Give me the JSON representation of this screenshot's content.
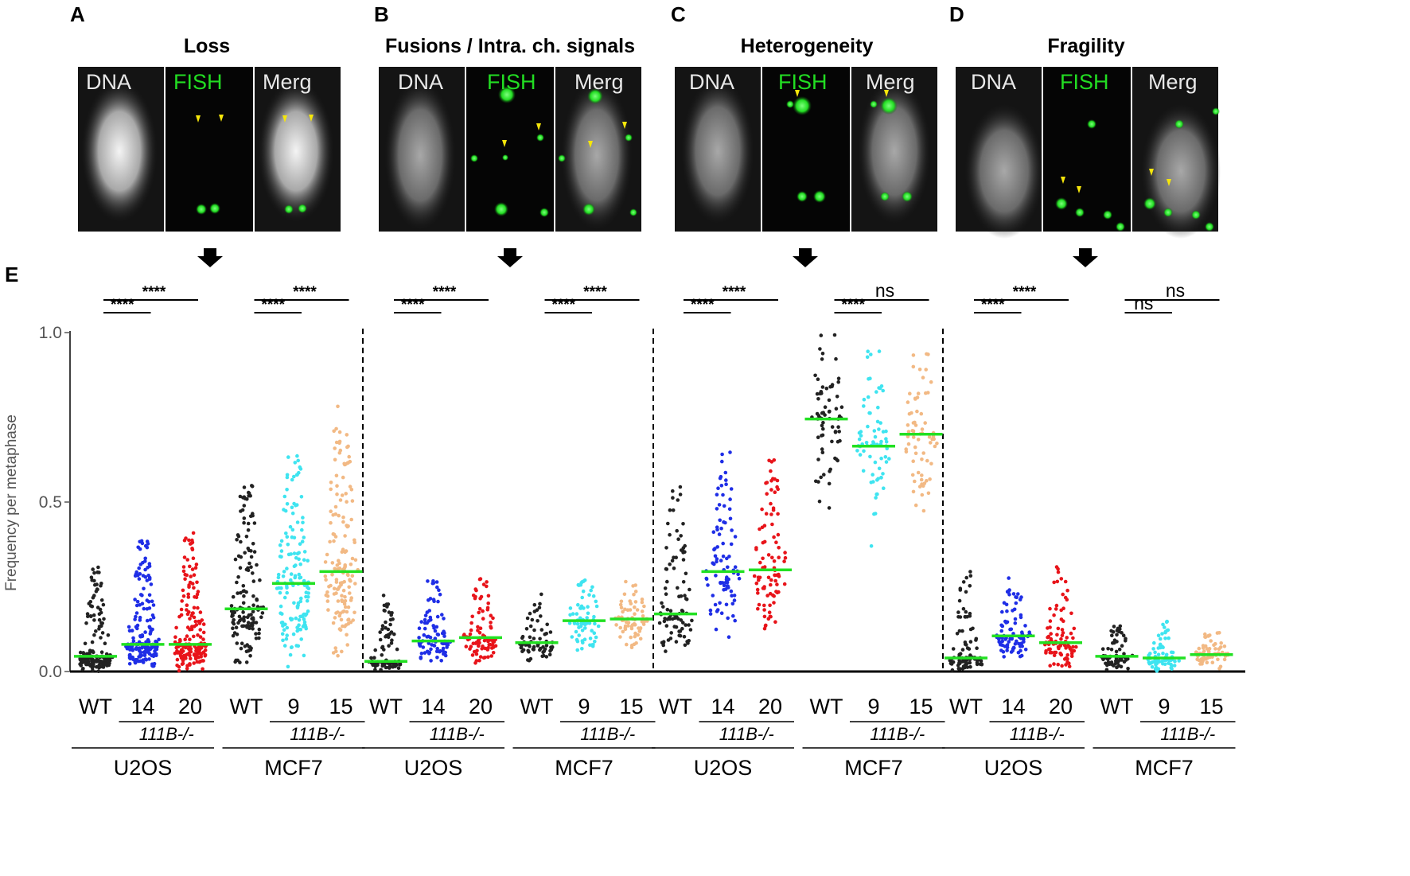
{
  "panels": [
    {
      "letter": "A",
      "title": "Loss",
      "channels": [
        "DNA",
        "FISH",
        "Merg"
      ]
    },
    {
      "letter": "B",
      "title": "Fusions / Intra. ch. signals",
      "channels": [
        "DNA",
        "FISH",
        "Merg"
      ]
    },
    {
      "letter": "C",
      "title": "Heterogeneity",
      "channels": [
        "DNA",
        "FISH",
        "Merg"
      ]
    },
    {
      "letter": "D",
      "title": "Fragility",
      "channels": [
        "DNA",
        "FISH",
        "Merg"
      ]
    }
  ],
  "panel_e_letter": "E",
  "colors": {
    "WT": "#222222",
    "U2OS_14": "#1f2ee6",
    "U2OS_20": "#e8141a",
    "MCF7_9": "#3fe4f0",
    "MCF7_15": "#f2b984",
    "median": "#22e022",
    "fish": "#22dd22",
    "arrowhead": "#f5e60a"
  },
  "chart_data": {
    "type": "scatter",
    "ylabel": "Frequency per metaphase",
    "ylim": [
      0,
      1.0
    ],
    "yticks": [
      "0.0",
      "0.5",
      "1.0"
    ],
    "yticks_values": [
      0,
      0.5,
      1.0
    ],
    "x_categories": [
      "WT",
      "14",
      "20",
      "WT",
      "9",
      "15"
    ],
    "genotype_label": "111B-/-",
    "cell_lines": [
      "U2OS",
      "MCF7"
    ],
    "groups": [
      {
        "name": "Loss",
        "groups": [
          {
            "cell": "U2OS",
            "label": "WT",
            "median": 0.045,
            "min": 0.0,
            "max": 0.32,
            "n": 150
          },
          {
            "cell": "U2OS",
            "label": "14",
            "median": 0.08,
            "min": 0.0,
            "max": 0.39,
            "n": 180
          },
          {
            "cell": "U2OS",
            "label": "20",
            "median": 0.08,
            "min": 0.0,
            "max": 0.41,
            "n": 180
          },
          {
            "cell": "MCF7",
            "label": "WT",
            "median": 0.185,
            "min": 0.0,
            "max": 0.55,
            "n": 140
          },
          {
            "cell": "MCF7",
            "label": "9",
            "median": 0.26,
            "min": 0.0,
            "max": 0.64,
            "n": 150
          },
          {
            "cell": "MCF7",
            "label": "15",
            "median": 0.295,
            "min": 0.0,
            "max": 0.8,
            "n": 150
          }
        ],
        "significance": [
          {
            "pair": [
              "WT",
              "14"
            ],
            "label": "****"
          },
          {
            "pair": [
              "WT",
              "20"
            ],
            "label": "****"
          },
          {
            "pair": [
              "WT",
              "9"
            ],
            "label": "****"
          },
          {
            "pair": [
              "WT",
              "15"
            ],
            "label": "****"
          }
        ]
      },
      {
        "name": "Fusions / Intra. ch. signals",
        "groups": [
          {
            "cell": "U2OS",
            "label": "WT",
            "median": 0.03,
            "min": 0.0,
            "max": 0.23,
            "n": 90
          },
          {
            "cell": "U2OS",
            "label": "14",
            "median": 0.09,
            "min": 0.02,
            "max": 0.27,
            "n": 90
          },
          {
            "cell": "U2OS",
            "label": "20",
            "median": 0.1,
            "min": 0.02,
            "max": 0.28,
            "n": 90
          },
          {
            "cell": "MCF7",
            "label": "WT",
            "median": 0.085,
            "min": 0.03,
            "max": 0.24,
            "n": 70
          },
          {
            "cell": "MCF7",
            "label": "9",
            "median": 0.15,
            "min": 0.04,
            "max": 0.28,
            "n": 70
          },
          {
            "cell": "MCF7",
            "label": "15",
            "median": 0.155,
            "min": 0.06,
            "max": 0.27,
            "n": 70
          }
        ],
        "significance": [
          {
            "pair": [
              "WT",
              "14"
            ],
            "label": "****"
          },
          {
            "pair": [
              "WT",
              "20"
            ],
            "label": "****"
          },
          {
            "pair": [
              "WT",
              "9"
            ],
            "label": "****"
          },
          {
            "pair": [
              "WT",
              "15"
            ],
            "label": "****"
          }
        ]
      },
      {
        "name": "Heterogeneity",
        "groups": [
          {
            "cell": "U2OS",
            "label": "WT",
            "median": 0.17,
            "min": 0.04,
            "max": 0.56,
            "n": 90
          },
          {
            "cell": "U2OS",
            "label": "14",
            "median": 0.295,
            "min": 0.06,
            "max": 0.69,
            "n": 90
          },
          {
            "cell": "U2OS",
            "label": "20",
            "median": 0.3,
            "min": 0.12,
            "max": 0.64,
            "n": 90
          },
          {
            "cell": "MCF7",
            "label": "WT",
            "median": 0.745,
            "min": 0.4,
            "max": 1.0,
            "n": 70
          },
          {
            "cell": "MCF7",
            "label": "9",
            "median": 0.665,
            "min": 0.36,
            "max": 0.96,
            "n": 70
          },
          {
            "cell": "MCF7",
            "label": "15",
            "median": 0.7,
            "min": 0.4,
            "max": 0.94,
            "n": 70
          }
        ],
        "significance": [
          {
            "pair": [
              "WT",
              "14"
            ],
            "label": "****"
          },
          {
            "pair": [
              "WT",
              "20"
            ],
            "label": "****"
          },
          {
            "pair": [
              "WT",
              "9"
            ],
            "label": "****"
          },
          {
            "pair": [
              "WT",
              "15"
            ],
            "label": "ns"
          }
        ]
      },
      {
        "name": "Fragility",
        "groups": [
          {
            "cell": "U2OS",
            "label": "WT",
            "median": 0.04,
            "min": 0.0,
            "max": 0.3,
            "n": 90
          },
          {
            "cell": "U2OS",
            "label": "14",
            "median": 0.105,
            "min": 0.02,
            "max": 0.28,
            "n": 90
          },
          {
            "cell": "U2OS",
            "label": "20",
            "median": 0.085,
            "min": 0.0,
            "max": 0.32,
            "n": 90
          },
          {
            "cell": "MCF7",
            "label": "WT",
            "median": 0.045,
            "min": 0.0,
            "max": 0.14,
            "n": 70
          },
          {
            "cell": "MCF7",
            "label": "9",
            "median": 0.04,
            "min": 0.0,
            "max": 0.15,
            "n": 70
          },
          {
            "cell": "MCF7",
            "label": "15",
            "median": 0.05,
            "min": 0.0,
            "max": 0.13,
            "n": 70
          }
        ],
        "significance": [
          {
            "pair": [
              "WT",
              "14"
            ],
            "label": "****"
          },
          {
            "pair": [
              "WT",
              "20"
            ],
            "label": "****"
          },
          {
            "pair": [
              "WT",
              "9"
            ],
            "label": "ns"
          },
          {
            "pair": [
              "WT",
              "15"
            ],
            "label": "ns"
          }
        ]
      }
    ]
  }
}
